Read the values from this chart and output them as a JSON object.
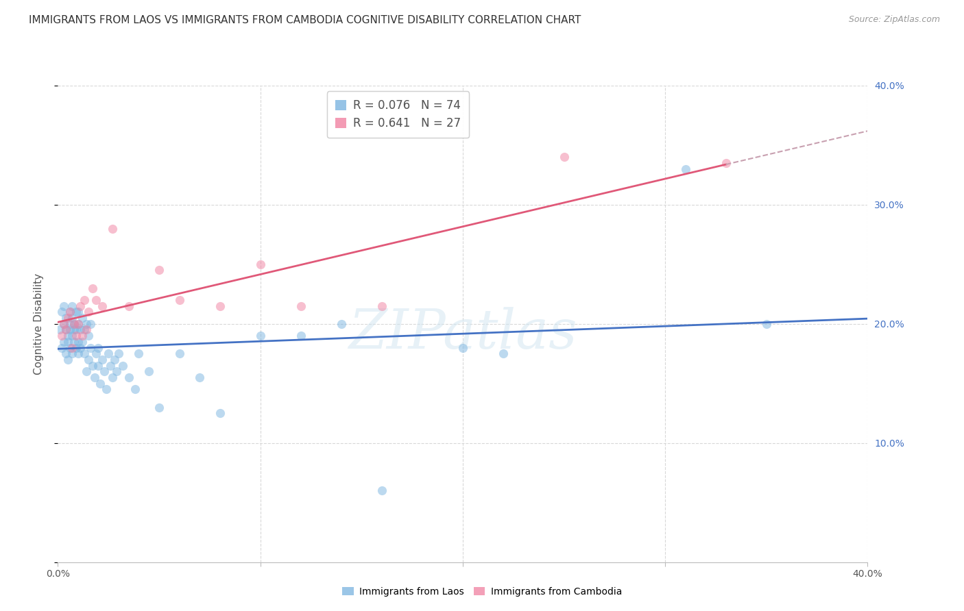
{
  "title": "IMMIGRANTS FROM LAOS VS IMMIGRANTS FROM CAMBODIA COGNITIVE DISABILITY CORRELATION CHART",
  "source": "Source: ZipAtlas.com",
  "ylabel": "Cognitive Disability",
  "xlim": [
    0.0,
    0.4
  ],
  "ylim": [
    0.0,
    0.4
  ],
  "laos_color": "#7ab4e0",
  "cambodia_color": "#f080a0",
  "laos_trend_color": "#4472c4",
  "cambodia_trend_color": "#e05878",
  "background_color": "#ffffff",
  "grid_color": "#d8d8d8",
  "right_axis_color": "#4472c4",
  "laos_x": [
    0.001,
    0.002,
    0.002,
    0.003,
    0.003,
    0.003,
    0.004,
    0.004,
    0.004,
    0.005,
    0.005,
    0.005,
    0.006,
    0.006,
    0.006,
    0.006,
    0.007,
    0.007,
    0.007,
    0.007,
    0.008,
    0.008,
    0.008,
    0.009,
    0.009,
    0.009,
    0.01,
    0.01,
    0.01,
    0.01,
    0.011,
    0.011,
    0.012,
    0.012,
    0.013,
    0.013,
    0.014,
    0.014,
    0.015,
    0.015,
    0.016,
    0.016,
    0.017,
    0.018,
    0.019,
    0.02,
    0.02,
    0.021,
    0.022,
    0.023,
    0.024,
    0.025,
    0.026,
    0.027,
    0.028,
    0.029,
    0.03,
    0.032,
    0.035,
    0.038,
    0.04,
    0.045,
    0.05,
    0.06,
    0.07,
    0.08,
    0.1,
    0.12,
    0.14,
    0.16,
    0.2,
    0.22,
    0.31,
    0.35
  ],
  "laos_y": [
    0.195,
    0.18,
    0.21,
    0.2,
    0.185,
    0.215,
    0.195,
    0.175,
    0.205,
    0.19,
    0.185,
    0.17,
    0.21,
    0.195,
    0.18,
    0.2,
    0.205,
    0.19,
    0.175,
    0.215,
    0.2,
    0.185,
    0.195,
    0.21,
    0.18,
    0.195,
    0.2,
    0.185,
    0.175,
    0.21,
    0.195,
    0.18,
    0.205,
    0.185,
    0.195,
    0.175,
    0.2,
    0.16,
    0.19,
    0.17,
    0.2,
    0.18,
    0.165,
    0.155,
    0.175,
    0.165,
    0.18,
    0.15,
    0.17,
    0.16,
    0.145,
    0.175,
    0.165,
    0.155,
    0.17,
    0.16,
    0.175,
    0.165,
    0.155,
    0.145,
    0.175,
    0.16,
    0.13,
    0.175,
    0.155,
    0.125,
    0.19,
    0.19,
    0.2,
    0.06,
    0.18,
    0.175,
    0.33,
    0.2
  ],
  "cambodia_x": [
    0.002,
    0.003,
    0.004,
    0.005,
    0.006,
    0.007,
    0.008,
    0.009,
    0.01,
    0.011,
    0.012,
    0.013,
    0.014,
    0.015,
    0.017,
    0.019,
    0.022,
    0.027,
    0.035,
    0.05,
    0.06,
    0.08,
    0.1,
    0.12,
    0.16,
    0.25,
    0.33
  ],
  "cambodia_y": [
    0.19,
    0.2,
    0.195,
    0.205,
    0.21,
    0.18,
    0.2,
    0.19,
    0.2,
    0.215,
    0.19,
    0.22,
    0.195,
    0.21,
    0.23,
    0.22,
    0.215,
    0.28,
    0.215,
    0.245,
    0.22,
    0.215,
    0.25,
    0.215,
    0.215,
    0.34,
    0.335
  ],
  "watermark": "ZIPatlas",
  "title_fontsize": 11,
  "axis_label_fontsize": 11,
  "tick_fontsize": 10,
  "legend_fontsize": 12,
  "marker_size": 90,
  "marker_alpha": 0.5
}
